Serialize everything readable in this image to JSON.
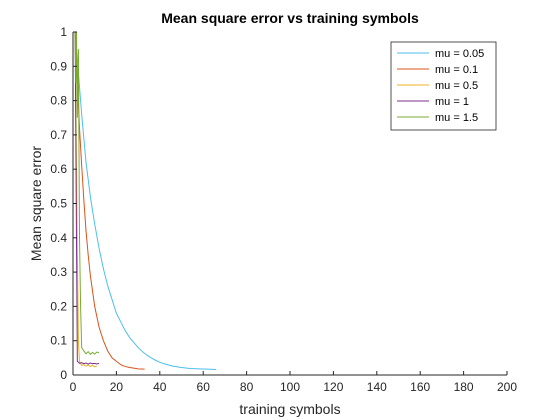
{
  "chart_data": {
    "type": "line",
    "title": "Mean square error vs training symbols",
    "xlabel": "training symbols",
    "ylabel": "Mean square error",
    "xlim": [
      0,
      200
    ],
    "ylim": [
      0,
      1
    ],
    "xticks": [
      0,
      20,
      40,
      60,
      80,
      100,
      120,
      140,
      160,
      180,
      200
    ],
    "yticks": [
      0,
      0.1,
      0.2,
      0.3,
      0.4,
      0.5,
      0.6,
      0.7,
      0.8,
      0.9,
      1
    ],
    "grid": false,
    "legend_position": "top-right",
    "series": [
      {
        "name": "mu = 0.05",
        "color": "#4DBEEE",
        "x": [
          1,
          2,
          3,
          4,
          5,
          6,
          8,
          10,
          12,
          14,
          16,
          18,
          20,
          22,
          24,
          26,
          28,
          30,
          32,
          34,
          36,
          38,
          40,
          43,
          46,
          50,
          54,
          58,
          62,
          66
        ],
        "y": [
          1,
          0.92,
          0.84,
          0.76,
          0.69,
          0.62,
          0.52,
          0.44,
          0.37,
          0.31,
          0.26,
          0.22,
          0.18,
          0.155,
          0.13,
          0.11,
          0.095,
          0.08,
          0.068,
          0.058,
          0.05,
          0.043,
          0.037,
          0.031,
          0.026,
          0.022,
          0.019,
          0.018,
          0.017,
          0.016
        ]
      },
      {
        "name": "mu = 0.1",
        "color": "#D95319",
        "x": [
          1,
          2,
          3,
          4,
          5,
          6,
          7,
          8,
          10,
          12,
          14,
          16,
          18,
          20,
          22,
          24,
          26,
          28,
          30,
          33
        ],
        "y": [
          1,
          0.86,
          0.72,
          0.61,
          0.51,
          0.42,
          0.35,
          0.29,
          0.2,
          0.14,
          0.1,
          0.07,
          0.05,
          0.04,
          0.03,
          0.025,
          0.022,
          0.02,
          0.018,
          0.017
        ]
      },
      {
        "name": "mu = 0.5",
        "color": "#EDB120",
        "x": [
          1,
          2,
          2.5,
          3,
          4,
          5,
          6,
          7,
          8,
          9,
          10,
          11
        ],
        "y": [
          1,
          0.35,
          0.1,
          0.04,
          0.028,
          0.03,
          0.026,
          0.029,
          0.025,
          0.028,
          0.024,
          0.026
        ]
      },
      {
        "name": "mu = 1",
        "color": "#7E2F8E",
        "x": [
          1,
          1.5,
          2,
          3,
          4,
          5,
          6,
          7,
          8,
          9,
          10,
          11,
          12
        ],
        "y": [
          1,
          0.5,
          0.04,
          0.034,
          0.036,
          0.033,
          0.035,
          0.032,
          0.035,
          0.033,
          0.034,
          0.032,
          0.034
        ]
      },
      {
        "name": "mu = 1.5",
        "color": "#77AC30",
        "x": [
          1,
          1.3,
          1.6,
          2,
          2.5,
          3,
          3.5,
          4,
          5,
          6,
          7,
          8,
          9,
          10,
          11,
          12
        ],
        "y": [
          1,
          0.85,
          1,
          0.75,
          0.95,
          0.4,
          0.2,
          0.08,
          0.07,
          0.062,
          0.068,
          0.06,
          0.066,
          0.061,
          0.067,
          0.065
        ]
      }
    ]
  }
}
